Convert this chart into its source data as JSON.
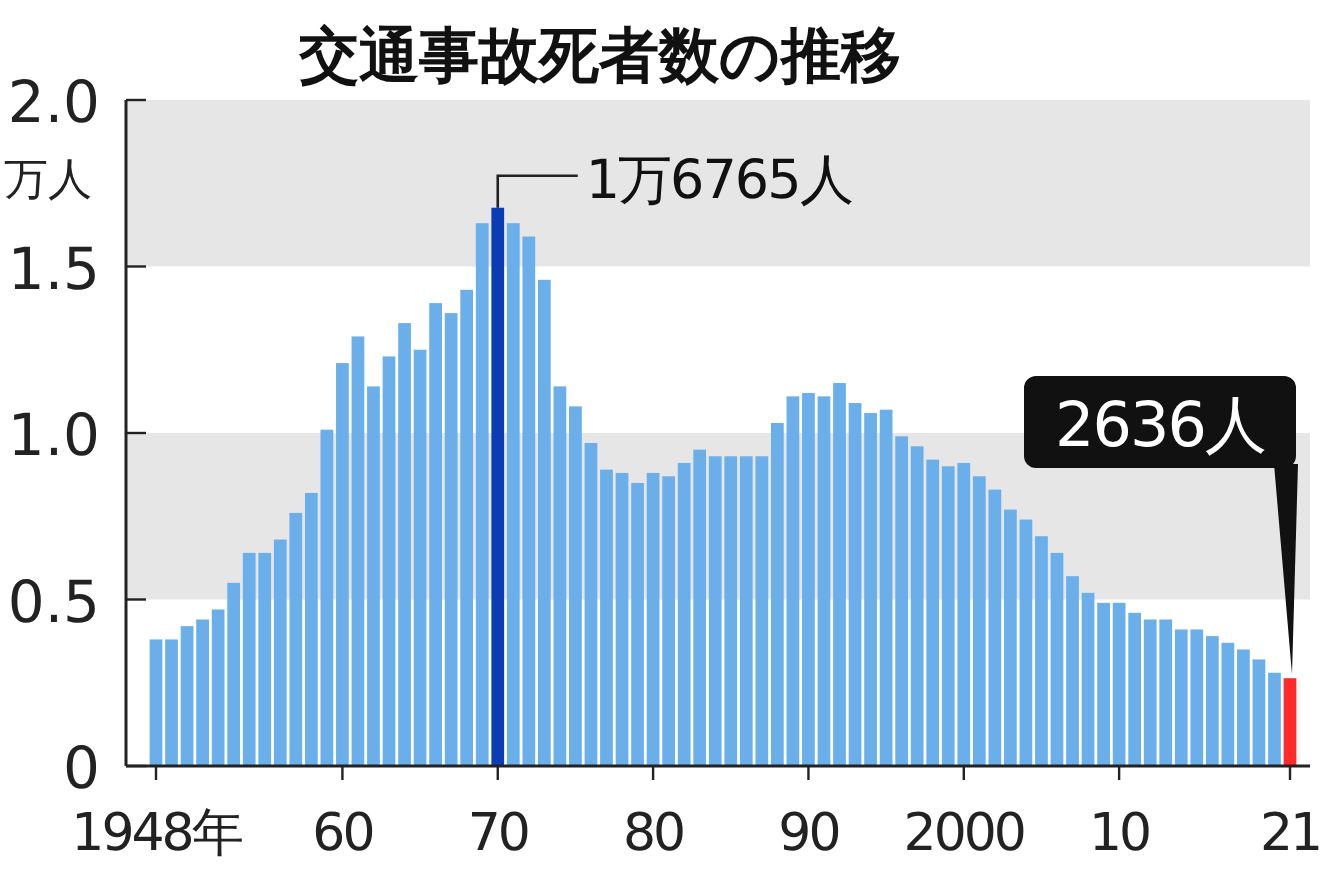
{
  "chart_data": {
    "type": "bar",
    "title": "交通事故死者数の推移",
    "ylabel": "万人",
    "categories": [
      "1948年",
      null,
      null,
      null,
      null,
      null,
      null,
      null,
      null,
      null,
      null,
      null,
      "60",
      null,
      null,
      null,
      null,
      null,
      null,
      null,
      null,
      null,
      "70",
      null,
      null,
      null,
      null,
      null,
      null,
      null,
      null,
      null,
      "80",
      null,
      null,
      null,
      null,
      null,
      null,
      null,
      null,
      null,
      "90",
      null,
      null,
      null,
      null,
      null,
      null,
      null,
      null,
      null,
      "2000",
      null,
      null,
      null,
      null,
      null,
      null,
      null,
      null,
      null,
      "10",
      null,
      null,
      null,
      null,
      null,
      null,
      null,
      null,
      null,
      null,
      "21"
    ],
    "values": [
      0.38,
      0.38,
      0.42,
      0.44,
      0.47,
      0.55,
      0.64,
      0.64,
      0.68,
      0.76,
      0.82,
      1.01,
      1.21,
      1.29,
      1.14,
      1.23,
      1.33,
      1.25,
      1.39,
      1.36,
      1.43,
      1.63,
      1.6765,
      1.63,
      1.59,
      1.46,
      1.14,
      1.08,
      0.97,
      0.89,
      0.88,
      0.85,
      0.88,
      0.87,
      0.91,
      0.95,
      0.93,
      0.93,
      0.93,
      0.93,
      1.03,
      1.11,
      1.12,
      1.11,
      1.15,
      1.09,
      1.06,
      1.07,
      0.99,
      0.96,
      0.92,
      0.9,
      0.91,
      0.87,
      0.83,
      0.77,
      0.74,
      0.69,
      0.64,
      0.57,
      0.52,
      0.49,
      0.49,
      0.46,
      0.44,
      0.44,
      0.41,
      0.41,
      0.39,
      0.37,
      0.35,
      0.32,
      0.28,
      0.2636
    ],
    "colors": [
      "#6aaeea",
      "#6aaeea",
      "#6aaeea",
      "#6aaeea",
      "#6aaeea",
      "#6aaeea",
      "#6aaeea",
      "#6aaeea",
      "#6aaeea",
      "#6aaeea",
      "#6aaeea",
      "#6aaeea",
      "#6aaeea",
      "#6aaeea",
      "#6aaeea",
      "#6aaeea",
      "#6aaeea",
      "#6aaeea",
      "#6aaeea",
      "#6aaeea",
      "#6aaeea",
      "#6aaeea",
      "#0a3cb4",
      "#6aaeea",
      "#6aaeea",
      "#6aaeea",
      "#6aaeea",
      "#6aaeea",
      "#6aaeea",
      "#6aaeea",
      "#6aaeea",
      "#6aaeea",
      "#6aaeea",
      "#6aaeea",
      "#6aaeea",
      "#6aaeea",
      "#6aaeea",
      "#6aaeea",
      "#6aaeea",
      "#6aaeea",
      "#6aaeea",
      "#6aaeea",
      "#6aaeea",
      "#6aaeea",
      "#6aaeea",
      "#6aaeea",
      "#6aaeea",
      "#6aaeea",
      "#6aaeea",
      "#6aaeea",
      "#6aaeea",
      "#6aaeea",
      "#6aaeea",
      "#6aaeea",
      "#6aaeea",
      "#6aaeea",
      "#6aaeea",
      "#6aaeea",
      "#6aaeea",
      "#6aaeea",
      "#6aaeea",
      "#6aaeea",
      "#6aaeea",
      "#6aaeea",
      "#6aaeea",
      "#6aaeea",
      "#6aaeea",
      "#6aaeea",
      "#6aaeea",
      "#6aaeea",
      "#6aaeea",
      "#6aaeea",
      "#6aaeea",
      "#ff2a2a"
    ],
    "ylim": [
      0,
      2
    ],
    "yticks": [
      0,
      0.5,
      {
        "value": 1,
        "label": "1.0"
      },
      1.5,
      {
        "value": 2,
        "label": "2.0"
      }
    ],
    "bands": [
      {
        "axis": "y",
        "from": 0.5,
        "to": 1,
        "color": "#e6e6e6"
      },
      {
        "axis": "y",
        "from": 1.5,
        "to": 2,
        "color": "#e6e6e6"
      }
    ],
    "annotations": [
      {
        "text": "1万6765人",
        "x": "70",
        "y": 1.6765
      },
      {
        "text": "2636人",
        "x": "21",
        "y": 0.2636
      }
    ],
    "grid": false
  }
}
